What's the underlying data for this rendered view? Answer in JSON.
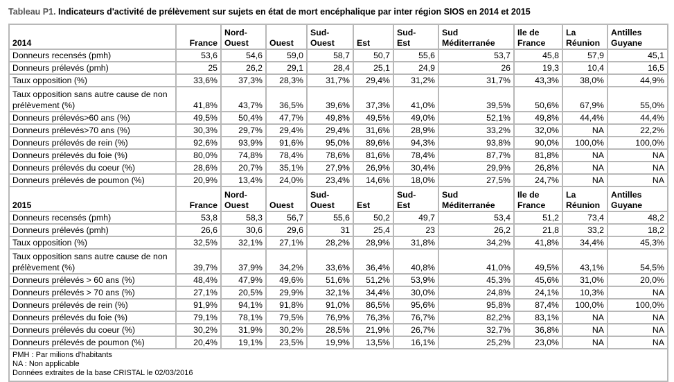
{
  "title": {
    "prefix": "Tableau P1.",
    "text": " Indicateurs d'activité de prélèvement sur sujets en état de mort encéphalique par inter région SIOS en 2014 et 2015"
  },
  "columns": [
    [
      "France"
    ],
    [
      "Nord-",
      "Ouest"
    ],
    [
      "Ouest"
    ],
    [
      "Sud-",
      "Ouest"
    ],
    [
      "Est"
    ],
    [
      "Sud-",
      "Est"
    ],
    [
      "Sud",
      "Méditerranée"
    ],
    [
      "Ile de",
      "France"
    ],
    [
      "La",
      "Réunion"
    ],
    [
      "Antilles",
      "Guyane"
    ]
  ],
  "blocks": [
    {
      "year": "2014",
      "rows": [
        {
          "label": "Donneurs recensés (pmh)",
          "values": [
            "53,6",
            "54,6",
            "59,0",
            "58,7",
            "50,7",
            "55,6",
            "53,7",
            "45,8",
            "57,9",
            "45,1"
          ]
        },
        {
          "label": "Donneurs prélevés (pmh)",
          "values": [
            "25",
            "26,2",
            "29,1",
            "28,4",
            "25,1",
            "24,9",
            "26",
            "19,3",
            "10,4",
            "16,5"
          ]
        },
        {
          "label": "Taux opposition (%)",
          "values": [
            "33,6%",
            "37,3%",
            "28,3%",
            "31,7%",
            "29,4%",
            "31,2%",
            "31,7%",
            "43,3%",
            "38,0%",
            "44,9%"
          ]
        },
        {
          "label": "Taux opposition sans autre cause de non prélèvement (%)",
          "tall": true,
          "values": [
            "41,8%",
            "43,7%",
            "36,5%",
            "39,6%",
            "37,3%",
            "41,0%",
            "39,5%",
            "50,6%",
            "67,9%",
            "55,0%"
          ]
        },
        {
          "label": "Donneurs prélevés>60 ans (%)",
          "values": [
            "49,5%",
            "50,4%",
            "47,7%",
            "49,8%",
            "49,5%",
            "49,0%",
            "52,1%",
            "49,8%",
            "44,4%",
            "44,4%"
          ]
        },
        {
          "label": "Donneurs prélevés>70 ans (%)",
          "values": [
            "30,3%",
            "29,7%",
            "29,4%",
            "29,4%",
            "31,6%",
            "28,9%",
            "33,2%",
            "32,0%",
            "NA",
            "22,2%"
          ]
        },
        {
          "label": "Donneurs prélevés de rein (%)",
          "values": [
            "92,6%",
            "93,9%",
            "91,6%",
            "95,0%",
            "89,6%",
            "94,3%",
            "93,8%",
            "90,0%",
            "100,0%",
            "100,0%"
          ]
        },
        {
          "label": "Donneurs prélevés du foie (%)",
          "values": [
            "80,0%",
            "74,8%",
            "78,4%",
            "78,6%",
            "81,6%",
            "78,4%",
            "87,7%",
            "81,8%",
            "NA",
            "NA"
          ]
        },
        {
          "label": "Donneurs prélevés du coeur (%)",
          "values": [
            "28,6%",
            "20,7%",
            "35,1%",
            "27,9%",
            "26,9%",
            "30,4%",
            "29,9%",
            "26,8%",
            "NA",
            "NA"
          ]
        },
        {
          "label": "Donneurs prélevés de poumon (%)",
          "values": [
            "20,9%",
            "13,4%",
            "24,0%",
            "23,4%",
            "14,6%",
            "18,0%",
            "27,5%",
            "24,7%",
            "NA",
            "NA"
          ]
        }
      ]
    },
    {
      "year": "2015",
      "rows": [
        {
          "label": "Donneurs recensés (pmh)",
          "values": [
            "53,8",
            "58,3",
            "56,7",
            "55,6",
            "50,2",
            "49,7",
            "53,4",
            "51,2",
            "73,4",
            "48,2"
          ]
        },
        {
          "label": "Donneurs prélevés (pmh)",
          "values": [
            "26,6",
            "30,6",
            "29,6",
            "31",
            "25,4",
            "23",
            "26,2",
            "21,8",
            "33,2",
            "18,2"
          ]
        },
        {
          "label": "Taux opposition (%)",
          "values": [
            "32,5%",
            "32,1%",
            "27,1%",
            "28,2%",
            "28,9%",
            "31,8%",
            "34,2%",
            "41,8%",
            "34,4%",
            "45,3%"
          ]
        },
        {
          "label": "Taux opposition sans autre cause de non prélèvement (%)",
          "tall": true,
          "values": [
            "39,7%",
            "37,9%",
            "34,2%",
            "33,6%",
            "36,4%",
            "40,8%",
            "41,0%",
            "49,5%",
            "43,1%",
            "54,5%"
          ]
        },
        {
          "label": "Donneurs prélevés > 60 ans (%)",
          "values": [
            "48,4%",
            "47,9%",
            "49,6%",
            "51,6%",
            "51,2%",
            "53,9%",
            "45,3%",
            "45,6%",
            "31,0%",
            "20,0%"
          ]
        },
        {
          "label": "Donneurs prélevés > 70 ans (%)",
          "values": [
            "27,1%",
            "20,5%",
            "29,9%",
            "32,1%",
            "34,4%",
            "30,0%",
            "24,8%",
            "24,1%",
            "10,3%",
            "NA"
          ]
        },
        {
          "label": "Donneurs prélevés de rein (%)",
          "values": [
            "91,9%",
            "94,1%",
            "91,8%",
            "91,0%",
            "86,5%",
            "95,6%",
            "95,8%",
            "87,4%",
            "100,0%",
            "100,0%"
          ]
        },
        {
          "label": "Donneurs prélevés du foie (%)",
          "values": [
            "79,1%",
            "78,1%",
            "79,5%",
            "76,9%",
            "76,3%",
            "76,7%",
            "82,2%",
            "83,1%",
            "NA",
            "NA"
          ]
        },
        {
          "label": "Donneurs prélevés du coeur (%)",
          "values": [
            "30,2%",
            "31,9%",
            "30,2%",
            "28,5%",
            "21,9%",
            "26,7%",
            "32,7%",
            "36,8%",
            "NA",
            "NA"
          ]
        },
        {
          "label": "Donneurs prélevés de poumon (%)",
          "values": [
            "20,4%",
            "19,1%",
            "23,5%",
            "19,9%",
            "13,5%",
            "16,1%",
            "25,2%",
            "23,0%",
            "NA",
            "NA"
          ]
        }
      ]
    }
  ],
  "footnotes": [
    "PMH : Par milions d'habitants",
    "NA : Non applicable",
    "Données extraites de la base CRISTAL le 02/03/2016"
  ]
}
